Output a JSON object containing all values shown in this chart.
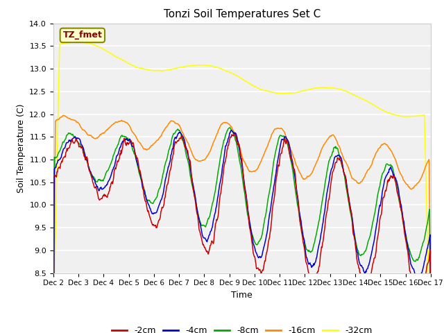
{
  "title": "Tonzi Soil Temperatures Set C",
  "xlabel": "Time",
  "ylabel": "Soil Temperature (C)",
  "ylim": [
    8.5,
    14.0
  ],
  "yticks": [
    8.5,
    9.0,
    9.5,
    10.0,
    10.5,
    11.0,
    11.5,
    12.0,
    12.5,
    13.0,
    13.5,
    14.0
  ],
  "xtick_labels": [
    "Dec 2",
    "Dec 3",
    "Dec 4",
    "Dec 5",
    "Dec 6",
    "Dec 7",
    "Dec 8",
    "Dec 9",
    "Dec 10",
    "Dec 11",
    "Dec 12",
    "Dec 13",
    "Dec 14",
    "Dec 15",
    "Dec 16",
    "Dec 17"
  ],
  "colors": {
    "m2": "#cc0000",
    "m4": "#0000cc",
    "m8": "#00aa00",
    "m16": "#ff8800",
    "m32": "#ffff00"
  },
  "label_box_text": "TZ_fmet",
  "label_box_bg": "#ffffcc",
  "label_box_border": "#888800",
  "label_box_color": "#880000",
  "fig_bg": "#ffffff",
  "ax_bg": "#f0f0f0",
  "grid_color": "#ffffff",
  "n_points": 720,
  "line_width": 1.1
}
